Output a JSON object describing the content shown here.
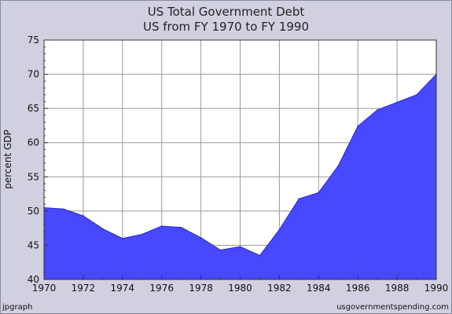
{
  "chart_data": {
    "type": "area",
    "title": "US Total Government Debt",
    "subtitle": "US from FY 1970 to FY 1990",
    "xlabel": "",
    "ylabel": "percent GDP",
    "x": [
      1970,
      1971,
      1972,
      1973,
      1974,
      1975,
      1976,
      1977,
      1978,
      1979,
      1980,
      1981,
      1982,
      1983,
      1984,
      1985,
      1986,
      1987,
      1988,
      1989,
      1990
    ],
    "series": [
      {
        "values": [
          50.5,
          50.3,
          49.3,
          47.4,
          46.0,
          46.6,
          47.8,
          47.6,
          46.1,
          44.3,
          44.8,
          43.5,
          47.3,
          51.8,
          52.7,
          56.6,
          62.4,
          64.8,
          65.9,
          67.0,
          70.0
        ],
        "color": "#4848ff"
      }
    ],
    "xlim": [
      1970,
      1990
    ],
    "ylim": [
      40,
      75
    ],
    "x_ticks": [
      "1970",
      "1972",
      "1974",
      "1976",
      "1978",
      "1980",
      "1982",
      "1984",
      "1986",
      "1988",
      "1990"
    ],
    "y_ticks": [
      "40",
      "45",
      "50",
      "55",
      "60",
      "65",
      "70",
      "75"
    ],
    "grid": true
  },
  "footer": {
    "left": "jpgraph",
    "right": "usgovernmentspending.com"
  }
}
